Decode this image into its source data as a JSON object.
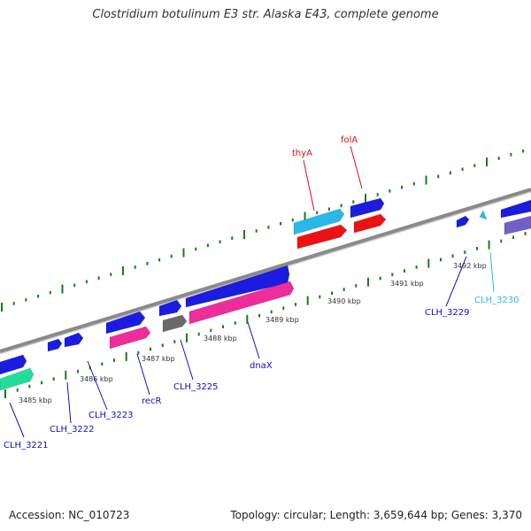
{
  "title": "Clostridium botulinum E3 str. Alaska E43, complete genome",
  "footer": {
    "accession": "Accession: NC_010723",
    "summary": "Topology: circular; Length: 3,659,644 bp; Genes: 3,370"
  },
  "colors": {
    "backbone": "#8a8a8a",
    "ticks": "#1a7a1a",
    "blue": "#1c1ce0",
    "cyan": "#2ab8e8",
    "red": "#ee1111",
    "magenta": "#ee2c9a",
    "gray": "#6a6a6a",
    "green": "#22dd99",
    "purple": "#7060c8"
  },
  "scale_labels": [
    "3485 kbp",
    "3486 kbp",
    "3487 kbp",
    "3488 kbp",
    "3489 kbp",
    "3490 kbp",
    "3491 kbp",
    "3492 kbp"
  ],
  "gene_labels": [
    "thyA",
    "folA",
    "CLH_3221",
    "CLH_3222",
    "CLH_3223",
    "recR",
    "CLH_3225",
    "dnaX",
    "CLH_3229",
    "CLH_3230"
  ]
}
